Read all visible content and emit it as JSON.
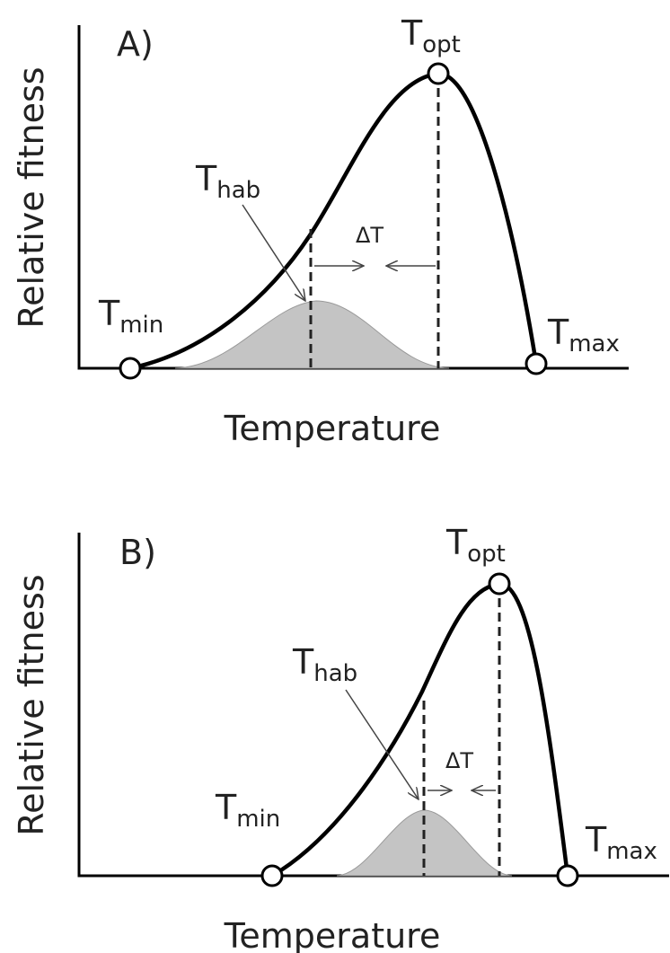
{
  "panels": [
    {
      "label": "A)",
      "y_axis_label": "Relative fitness",
      "x_axis_label": "Temperature",
      "t_opt": {
        "base": "T",
        "sub": "opt"
      },
      "t_hab": {
        "base": "T",
        "sub": "hab"
      },
      "t_min": {
        "base": "T",
        "sub": "min"
      },
      "t_max": {
        "base": "T",
        "sub": "max"
      },
      "delta": "ΔT"
    },
    {
      "label": "B)",
      "y_axis_label": "Relative fitness",
      "x_axis_label": "Temperature",
      "t_opt": {
        "base": "T",
        "sub": "opt"
      },
      "t_hab": {
        "base": "T",
        "sub": "hab"
      },
      "t_min": {
        "base": "T",
        "sub": "min"
      },
      "t_max": {
        "base": "T",
        "sub": "max"
      },
      "delta": "ΔT"
    }
  ]
}
